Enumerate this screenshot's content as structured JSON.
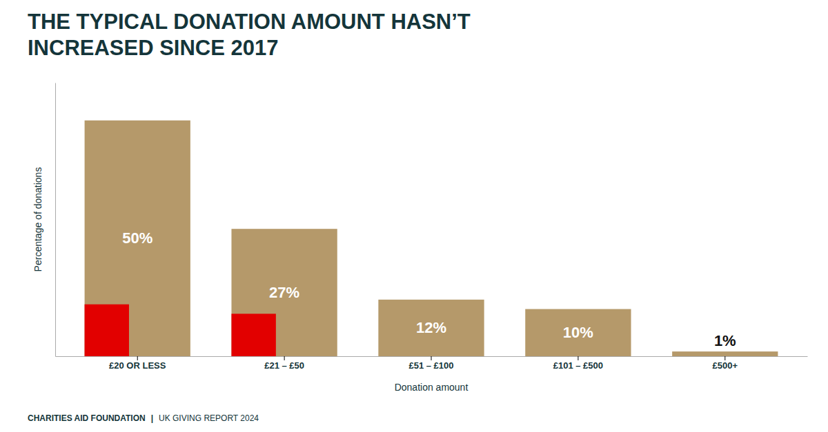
{
  "chart_data": {
    "type": "bar",
    "title": [
      "THE TYPICAL DONATION AMOUNT HASN’T",
      "INCREASED SINCE 2017"
    ],
    "categories": [
      "£20 OR LESS",
      "£21 – £50",
      "£51 – £100",
      "£101 – £500",
      "£500+"
    ],
    "series": [
      {
        "color": "#b5996a",
        "values": [
          50,
          27,
          12,
          10,
          1
        ],
        "value_labels": [
          "50%",
          "27%",
          "12%",
          "10%",
          "1%"
        ]
      },
      {
        "color": "#e20000",
        "values": [
          11,
          9,
          null,
          null,
          null
        ]
      }
    ],
    "xlabel": "Donation amount",
    "ylabel": "Percentage of donations",
    "ylim": [
      0,
      58
    ],
    "tick_labels": "x",
    "grid": false,
    "data_labels": true,
    "footer": [
      "CHARITIES AID FOUNDATION",
      "|",
      "UK GIVING REPORT 2024"
    ]
  }
}
